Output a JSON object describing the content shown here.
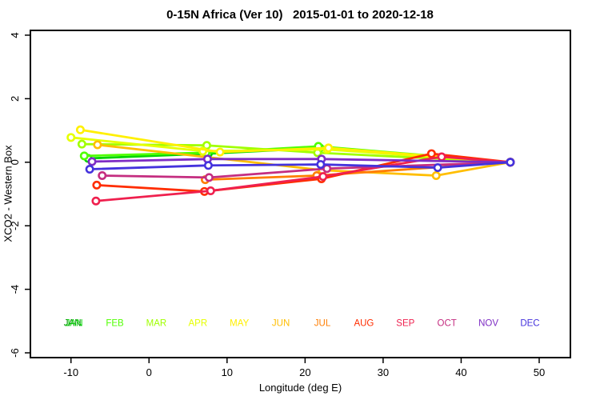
{
  "chart_data": {
    "type": "line",
    "title": "0-15N Africa (Ver 10)   2015-01-01 to 2020-12-18",
    "xlabel": "Longitude (deg E)",
    "ylabel": "XCO2 - Western Box",
    "xlim": [
      -15.2,
      54.0
    ],
    "ylim": [
      -6.15,
      4.15
    ],
    "xticks": [
      -10,
      0,
      10,
      20,
      30,
      40,
      50
    ],
    "yticks": [
      4,
      2,
      0,
      -2,
      -4,
      -6
    ],
    "grid": false,
    "legend_position": "bottom-inside",
    "legend_y": -5.15,
    "legend_x_start": -9.7,
    "legend_x_step": 5.32,
    "series": [
      {
        "name": "JAN",
        "color": "#00D400",
        "legend_overprint_color": "#008F00",
        "points": [
          [
            -7.8,
            0.12
          ],
          [
            7.6,
            0.27
          ],
          [
            21.9,
            0.45
          ],
          [
            46.3,
            0.0
          ]
        ]
      },
      {
        "name": "FEB",
        "color": "#4FFF00",
        "points": [
          [
            -8.3,
            0.2
          ],
          [
            7.3,
            0.3
          ],
          [
            21.7,
            0.5
          ],
          [
            46.3,
            0.0
          ]
        ]
      },
      {
        "name": "MAR",
        "color": "#A0FF00",
        "points": [
          [
            -8.6,
            0.57
          ],
          [
            7.4,
            0.53
          ],
          [
            21.6,
            0.3
          ],
          [
            46.3,
            0.0
          ]
        ]
      },
      {
        "name": "APR",
        "color": "#E6FF00",
        "points": [
          [
            -10.0,
            0.78
          ],
          [
            6.9,
            0.35
          ],
          [
            22.8,
            0.4
          ],
          [
            46.3,
            0.0
          ]
        ]
      },
      {
        "name": "MAY",
        "color": "#FFF000",
        "points": [
          [
            -8.8,
            1.02
          ],
          [
            9.1,
            0.32
          ],
          [
            23.0,
            0.45
          ],
          [
            46.3,
            0.0
          ]
        ]
      },
      {
        "name": "JUN",
        "color": "#FFBE00",
        "points": [
          [
            -6.6,
            0.55
          ],
          [
            22.2,
            -0.25
          ],
          [
            36.8,
            -0.42
          ],
          [
            46.3,
            0.0
          ]
        ]
      },
      {
        "name": "JUL",
        "color": "#FF7D00",
        "points": [
          [
            7.2,
            -0.55
          ],
          [
            21.5,
            -0.42
          ],
          [
            46.3,
            0.0
          ]
        ]
      },
      {
        "name": "AUG",
        "color": "#FF2D00",
        "points": [
          [
            -6.7,
            -0.72
          ],
          [
            7.1,
            -0.92
          ],
          [
            22.1,
            -0.52
          ],
          [
            36.2,
            0.27
          ],
          [
            46.3,
            0.0
          ]
        ]
      },
      {
        "name": "SEP",
        "color": "#EF204E",
        "points": [
          [
            -6.8,
            -1.22
          ],
          [
            7.9,
            -0.9
          ],
          [
            22.3,
            -0.45
          ],
          [
            37.5,
            0.17
          ],
          [
            46.3,
            0.0
          ]
        ]
      },
      {
        "name": "OCT",
        "color": "#C42D80",
        "points": [
          [
            -6.0,
            -0.42
          ],
          [
            7.7,
            -0.48
          ],
          [
            22.8,
            -0.2
          ],
          [
            46.3,
            0.0
          ]
        ]
      },
      {
        "name": "NOV",
        "color": "#7E2DC4",
        "points": [
          [
            -7.3,
            0.02
          ],
          [
            7.5,
            0.1
          ],
          [
            22.1,
            0.1
          ],
          [
            46.3,
            0.0
          ]
        ]
      },
      {
        "name": "DEC",
        "color": "#4432DD",
        "points": [
          [
            -7.6,
            -0.22
          ],
          [
            7.6,
            -0.1
          ],
          [
            22.0,
            -0.07
          ],
          [
            37.0,
            -0.17
          ],
          [
            46.3,
            0.0
          ]
        ]
      }
    ]
  }
}
